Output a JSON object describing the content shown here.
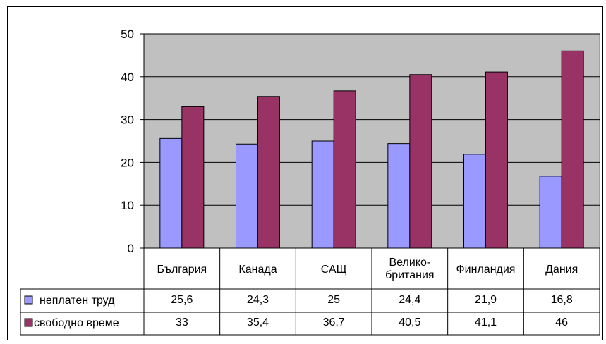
{
  "chart_data": {
    "type": "bar",
    "title": "",
    "xlabel": "",
    "ylabel": "",
    "ylim": [
      0,
      50
    ],
    "yticks": [
      "0",
      "10",
      "20",
      "30",
      "40",
      "50"
    ],
    "grid": true,
    "plot_background": "#c0c0c0",
    "categories": [
      [
        "България"
      ],
      [
        "Канада"
      ],
      [
        "САЩ"
      ],
      [
        "Велико-",
        "британия"
      ],
      [
        "Финландия"
      ],
      [
        "Дания"
      ]
    ],
    "series": [
      {
        "name": "неплатен труд",
        "color": "#9999ff",
        "values": [
          25.6,
          24.3,
          25,
          24.4,
          21.9,
          16.8
        ],
        "labels": [
          "25,6",
          "24,3",
          "25",
          "24,4",
          "21,9",
          "16,8"
        ]
      },
      {
        "name": "свободно време",
        "color": "#993366",
        "values": [
          33,
          35.4,
          36.7,
          40.5,
          41.1,
          46
        ],
        "labels": [
          "33",
          "35,4",
          "36,7",
          "40,5",
          "41,1",
          "46"
        ]
      }
    ],
    "legend": "data-table"
  }
}
